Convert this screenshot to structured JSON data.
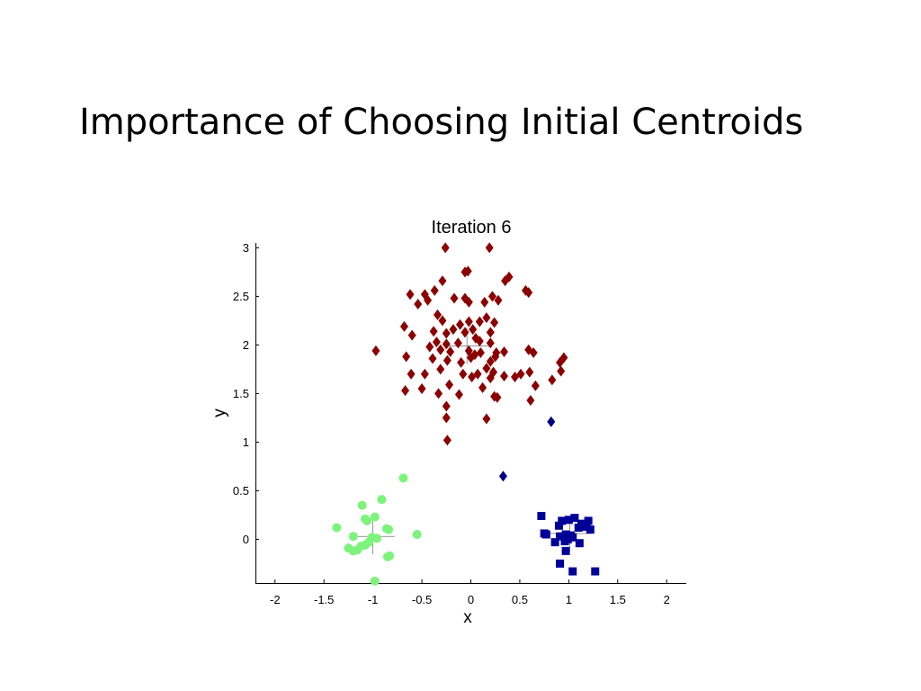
{
  "slide": {
    "title": "Importance of Choosing Initial Centroids"
  },
  "chart_data": {
    "type": "scatter",
    "title": "Iteration 6",
    "xlabel": "x",
    "ylabel": "y",
    "xlim": [
      -2.2,
      2.2
    ],
    "ylim": [
      -0.45,
      3.05
    ],
    "xticks": [
      -2,
      -1.5,
      -1,
      -0.5,
      0,
      0.5,
      1,
      1.5,
      2
    ],
    "xtick_labels": [
      "-2",
      "-1.5",
      "-1",
      "-0.5",
      "0",
      "0.5",
      "1",
      "1.5",
      "2"
    ],
    "yticks": [
      0,
      0.5,
      1,
      1.5,
      2,
      2.5,
      3
    ],
    "ytick_labels": [
      "0",
      "0.5",
      "1",
      "1.5",
      "2",
      "2.5",
      "3"
    ],
    "grid": false,
    "legend": "none",
    "series": [
      {
        "marker": "diamond",
        "color": "#8b0000",
        "points": [
          [
            -0.26,
            3.0
          ],
          [
            0.19,
            3.0
          ],
          [
            -0.06,
            2.75
          ],
          [
            -0.03,
            2.76
          ],
          [
            0.39,
            2.7
          ],
          [
            0.35,
            2.66
          ],
          [
            -0.29,
            2.66
          ],
          [
            -0.62,
            2.52
          ],
          [
            -0.47,
            2.52
          ],
          [
            -0.37,
            2.56
          ],
          [
            -0.44,
            2.46
          ],
          [
            -0.54,
            2.42
          ],
          [
            -0.02,
            2.44
          ],
          [
            0.14,
            2.44
          ],
          [
            0.22,
            2.5
          ],
          [
            0.28,
            2.46
          ],
          [
            0.56,
            2.56
          ],
          [
            0.59,
            2.54
          ],
          [
            -0.17,
            2.48
          ],
          [
            -0.06,
            2.48
          ],
          [
            -0.34,
            2.31
          ],
          [
            -0.29,
            2.25
          ],
          [
            -0.02,
            2.24
          ],
          [
            0.09,
            2.24
          ],
          [
            0.16,
            2.28
          ],
          [
            0.24,
            2.23
          ],
          [
            -0.68,
            2.19
          ],
          [
            -0.38,
            2.14
          ],
          [
            -0.18,
            2.16
          ],
          [
            -0.11,
            2.21
          ],
          [
            0.02,
            2.16
          ],
          [
            0.2,
            2.13
          ],
          [
            -0.6,
            2.1
          ],
          [
            -0.25,
            2.12
          ],
          [
            -0.06,
            2.13
          ],
          [
            0.05,
            2.07
          ],
          [
            -0.35,
            2.03
          ],
          [
            -0.25,
            2.01
          ],
          [
            -0.13,
            2.02
          ],
          [
            0.09,
            2.04
          ],
          [
            0.2,
            2.02
          ],
          [
            -0.97,
            1.94
          ],
          [
            -0.42,
            1.98
          ],
          [
            -0.31,
            1.95
          ],
          [
            -0.21,
            1.93
          ],
          [
            -0.02,
            1.94
          ],
          [
            0.1,
            1.92
          ],
          [
            0.26,
            1.92
          ],
          [
            0.34,
            1.93
          ],
          [
            0.59,
            1.95
          ],
          [
            0.64,
            1.92
          ],
          [
            -0.66,
            1.88
          ],
          [
            -0.39,
            1.86
          ],
          [
            -0.24,
            1.84
          ],
          [
            -0.1,
            1.82
          ],
          [
            0.0,
            1.87
          ],
          [
            0.04,
            1.9
          ],
          [
            0.2,
            1.83
          ],
          [
            0.25,
            1.88
          ],
          [
            0.91,
            1.82
          ],
          [
            0.95,
            1.87
          ],
          [
            -0.61,
            1.7
          ],
          [
            -0.47,
            1.7
          ],
          [
            -0.31,
            1.75
          ],
          [
            -0.08,
            1.7
          ],
          [
            0.01,
            1.67
          ],
          [
            0.07,
            1.7
          ],
          [
            0.16,
            1.76
          ],
          [
            0.23,
            1.72
          ],
          [
            0.34,
            1.68
          ],
          [
            0.45,
            1.67
          ],
          [
            0.51,
            1.7
          ],
          [
            0.6,
            1.72
          ],
          [
            0.83,
            1.64
          ],
          [
            0.92,
            1.73
          ],
          [
            -0.67,
            1.53
          ],
          [
            -0.5,
            1.55
          ],
          [
            -0.33,
            1.5
          ],
          [
            -0.22,
            1.59
          ],
          [
            -0.12,
            1.49
          ],
          [
            0.12,
            1.56
          ],
          [
            0.2,
            1.66
          ],
          [
            0.24,
            1.47
          ],
          [
            0.27,
            1.46
          ],
          [
            0.61,
            1.43
          ],
          [
            0.66,
            1.58
          ],
          [
            -0.25,
            1.37
          ],
          [
            -0.25,
            1.25
          ],
          [
            0.16,
            1.24
          ],
          [
            -0.24,
            1.02
          ]
        ]
      },
      {
        "marker": "diamond",
        "color": "#000080",
        "points": [
          [
            0.82,
            1.21
          ],
          [
            0.33,
            0.65
          ]
        ]
      },
      {
        "marker": "square",
        "color": "#000099",
        "points": [
          [
            0.72,
            0.24
          ],
          [
            0.93,
            0.19
          ],
          [
            1.0,
            0.2
          ],
          [
            1.06,
            0.22
          ],
          [
            1.2,
            0.19
          ],
          [
            1.13,
            0.16
          ],
          [
            0.9,
            0.14
          ],
          [
            0.75,
            0.06
          ],
          [
            0.77,
            0.05
          ],
          [
            0.91,
            0.03
          ],
          [
            0.97,
            0.05
          ],
          [
            1.02,
            0.04
          ],
          [
            1.1,
            0.12
          ],
          [
            1.18,
            0.13
          ],
          [
            1.22,
            0.1
          ],
          [
            0.99,
            0.0
          ],
          [
            1.04,
            0.02
          ],
          [
            0.86,
            -0.03
          ],
          [
            0.96,
            -0.02
          ],
          [
            1.11,
            -0.04
          ],
          [
            0.97,
            -0.12
          ],
          [
            0.91,
            -0.25
          ],
          [
            1.04,
            -0.33
          ],
          [
            1.27,
            -0.33
          ]
        ]
      },
      {
        "marker": "circle",
        "color": "#7cf47c",
        "points": [
          [
            -0.69,
            0.63
          ],
          [
            -0.91,
            0.41
          ],
          [
            -1.11,
            0.35
          ],
          [
            -0.98,
            0.23
          ],
          [
            -1.08,
            0.21
          ],
          [
            -1.06,
            0.19
          ],
          [
            -0.86,
            0.11
          ],
          [
            -1.37,
            0.12
          ],
          [
            -0.84,
            0.1
          ],
          [
            -1.2,
            0.03
          ],
          [
            -1.01,
            0.02
          ],
          [
            -0.96,
            0.01
          ],
          [
            -0.55,
            0.05
          ],
          [
            -1.04,
            -0.03
          ],
          [
            -1.08,
            -0.06
          ],
          [
            -1.12,
            -0.07
          ],
          [
            -1.25,
            -0.09
          ],
          [
            -1.2,
            -0.12
          ],
          [
            -1.16,
            -0.11
          ],
          [
            -0.83,
            -0.17
          ],
          [
            -0.85,
            -0.18
          ],
          [
            -0.98,
            -0.43
          ]
        ]
      }
    ],
    "centroid_markers": [
      [
        -0.04,
        1.99
      ],
      [
        1.01,
        0.06
      ],
      [
        -1.0,
        0.03
      ]
    ]
  }
}
